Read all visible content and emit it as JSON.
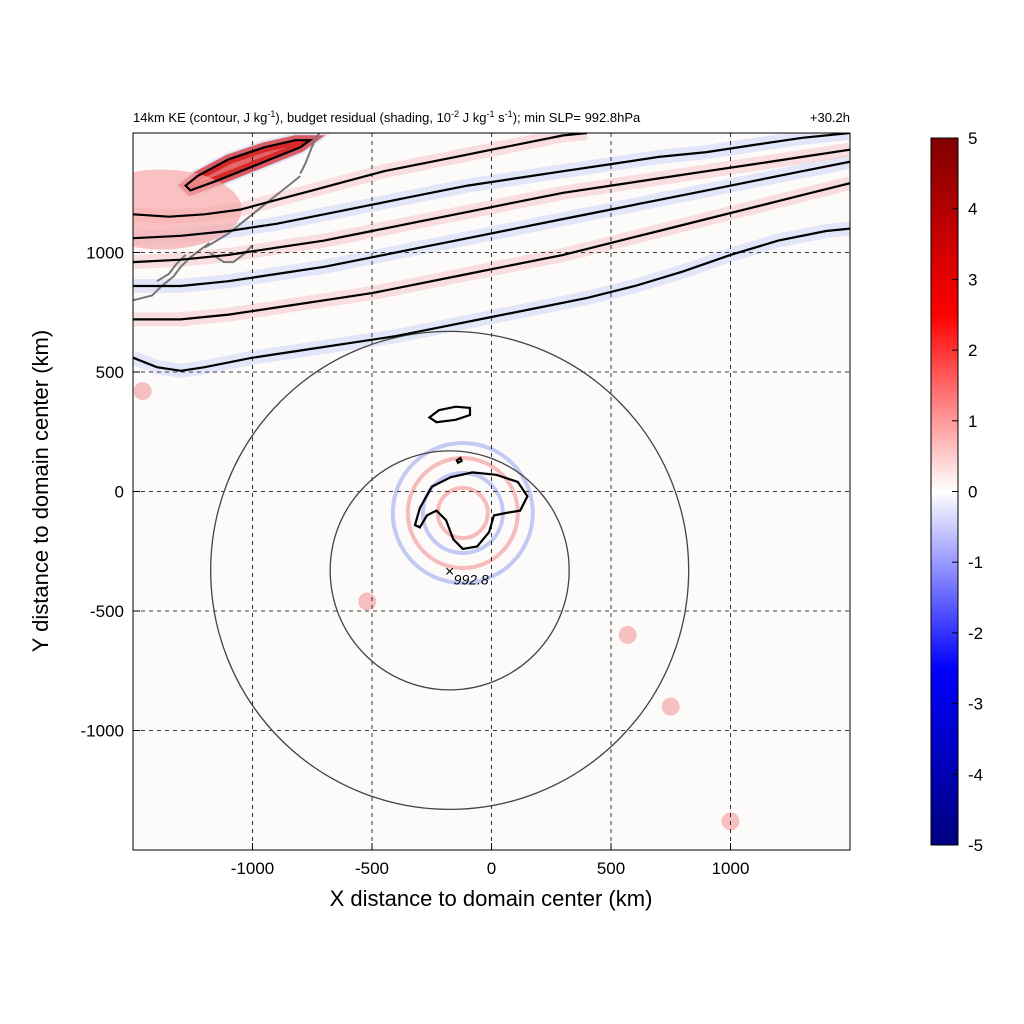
{
  "chart_data": {
    "type": "heatmap",
    "title_parts": {
      "a": "14km KE (contour, J kg",
      "a_sup": "-1",
      "b": "), budget residual (shading, 10",
      "b_sup": "-2",
      "c": " J kg",
      "c_sup": "-1",
      "d": " s",
      "d_sup": "-1",
      "e": "); min SLP= 992.8hPa"
    },
    "time_label": "+30.2h",
    "xlabel": "X distance to domain center (km)",
    "ylabel": "Y distance to domain center (km)",
    "xlim": [
      -1500,
      1500
    ],
    "ylim": [
      -1500,
      1500
    ],
    "xticks": [
      -1000,
      -500,
      0,
      500,
      1000
    ],
    "yticks": [
      1000,
      500,
      0,
      -500,
      -1000
    ],
    "grid": true,
    "colorbar": {
      "range": [
        -5,
        5
      ],
      "ticks": [
        5,
        4,
        3,
        2,
        1,
        0,
        -1,
        -2,
        -3,
        -4,
        -5
      ],
      "colors": [
        "#00007f",
        "#0000ff",
        "#ffffff",
        "#ff0000",
        "#7f0000"
      ]
    },
    "storm_center": {
      "x": -175,
      "y": -330,
      "label": "992.8",
      "marker": "×"
    },
    "range_circles_km": [
      500,
      1000
    ],
    "ke_contours": [
      {
        "name": "jet-1",
        "points": [
          [
            -1500,
            560
          ],
          [
            -1400,
            520
          ],
          [
            -1300,
            505
          ],
          [
            -1200,
            520
          ],
          [
            -1000,
            560
          ],
          [
            -800,
            590
          ],
          [
            -600,
            620
          ],
          [
            -400,
            650
          ],
          [
            -200,
            690
          ],
          [
            0,
            730
          ],
          [
            200,
            770
          ],
          [
            400,
            810
          ],
          [
            600,
            860
          ],
          [
            800,
            920
          ],
          [
            1000,
            990
          ],
          [
            1200,
            1050
          ],
          [
            1400,
            1090
          ],
          [
            1500,
            1100
          ]
        ]
      },
      {
        "name": "jet-2",
        "points": [
          [
            -1500,
            720
          ],
          [
            -1300,
            720
          ],
          [
            -1100,
            740
          ],
          [
            -900,
            770
          ],
          [
            -700,
            800
          ],
          [
            -500,
            830
          ],
          [
            -300,
            870
          ],
          [
            -100,
            910
          ],
          [
            100,
            950
          ],
          [
            300,
            990
          ],
          [
            500,
            1040
          ],
          [
            700,
            1090
          ],
          [
            900,
            1140
          ],
          [
            1100,
            1190
          ],
          [
            1300,
            1240
          ],
          [
            1500,
            1290
          ]
        ]
      },
      {
        "name": "jet-3",
        "points": [
          [
            -1500,
            860
          ],
          [
            -1300,
            860
          ],
          [
            -1100,
            880
          ],
          [
            -900,
            910
          ],
          [
            -700,
            940
          ],
          [
            -500,
            980
          ],
          [
            -300,
            1020
          ],
          [
            -100,
            1060
          ],
          [
            100,
            1100
          ],
          [
            300,
            1140
          ],
          [
            500,
            1180
          ],
          [
            700,
            1220
          ],
          [
            900,
            1260
          ],
          [
            1100,
            1300
          ],
          [
            1300,
            1340
          ],
          [
            1500,
            1380
          ]
        ]
      },
      {
        "name": "jet-4",
        "points": [
          [
            -1500,
            960
          ],
          [
            -1300,
            970
          ],
          [
            -1100,
            990
          ],
          [
            -900,
            1020
          ],
          [
            -700,
            1050
          ],
          [
            -500,
            1090
          ],
          [
            -300,
            1130
          ],
          [
            -100,
            1170
          ],
          [
            100,
            1210
          ],
          [
            300,
            1250
          ],
          [
            500,
            1280
          ],
          [
            700,
            1310
          ],
          [
            900,
            1340
          ],
          [
            1100,
            1370
          ],
          [
            1300,
            1400
          ],
          [
            1500,
            1430
          ]
        ]
      },
      {
        "name": "jet-5",
        "points": [
          [
            -1500,
            1060
          ],
          [
            -1300,
            1070
          ],
          [
            -1100,
            1090
          ],
          [
            -900,
            1120
          ],
          [
            -700,
            1160
          ],
          [
            -500,
            1200
          ],
          [
            -300,
            1240
          ],
          [
            -100,
            1280
          ],
          [
            100,
            1310
          ],
          [
            300,
            1340
          ],
          [
            500,
            1370
          ],
          [
            700,
            1400
          ],
          [
            900,
            1420
          ],
          [
            1100,
            1450
          ],
          [
            1300,
            1480
          ],
          [
            1500,
            1500
          ]
        ]
      },
      {
        "name": "jet-6",
        "points": [
          [
            -1500,
            1160
          ],
          [
            -1350,
            1150
          ],
          [
            -1200,
            1160
          ],
          [
            -1050,
            1180
          ],
          [
            -900,
            1220
          ],
          [
            -750,
            1260
          ],
          [
            -600,
            1300
          ],
          [
            -450,
            1340
          ],
          [
            -300,
            1370
          ],
          [
            -150,
            1400
          ],
          [
            0,
            1430
          ],
          [
            150,
            1460
          ],
          [
            300,
            1490
          ],
          [
            400,
            1500
          ]
        ]
      },
      {
        "name": "jet-core",
        "points": [
          [
            -1260,
            1260
          ],
          [
            -1150,
            1300
          ],
          [
            -1000,
            1360
          ],
          [
            -900,
            1400
          ],
          [
            -800,
            1440
          ],
          [
            -760,
            1470
          ],
          [
            -820,
            1470
          ],
          [
            -950,
            1440
          ],
          [
            -1100,
            1390
          ],
          [
            -1230,
            1320
          ],
          [
            -1280,
            1280
          ],
          [
            -1260,
            1260
          ]
        ]
      },
      {
        "name": "north-islet",
        "points": [
          [
            -260,
            310
          ],
          [
            -220,
            340
          ],
          [
            -150,
            355
          ],
          [
            -90,
            350
          ],
          [
            -90,
            320
          ],
          [
            -150,
            300
          ],
          [
            -230,
            290
          ],
          [
            -260,
            310
          ]
        ]
      },
      {
        "name": "core-small",
        "points": [
          [
            -145,
            130
          ],
          [
            -130,
            140
          ],
          [
            -125,
            128
          ],
          [
            -140,
            120
          ],
          [
            -145,
            130
          ]
        ]
      },
      {
        "name": "core",
        "points": [
          [
            -320,
            -140
          ],
          [
            -300,
            -70
          ],
          [
            -250,
            20
          ],
          [
            -170,
            60
          ],
          [
            -80,
            80
          ],
          [
            20,
            70
          ],
          [
            110,
            40
          ],
          [
            150,
            -20
          ],
          [
            120,
            -80
          ],
          [
            60,
            -90
          ],
          [
            10,
            -100
          ],
          [
            -10,
            -170
          ],
          [
            -60,
            -230
          ],
          [
            -120,
            -240
          ],
          [
            -160,
            -200
          ],
          [
            -190,
            -120
          ],
          [
            -230,
            -80
          ],
          [
            -270,
            -100
          ],
          [
            -300,
            -150
          ],
          [
            -320,
            -140
          ]
        ]
      }
    ],
    "coast_segments": [
      [
        [
          -1500,
          800
        ],
        [
          -1420,
          820
        ],
        [
          -1380,
          860
        ],
        [
          -1330,
          900
        ],
        [
          -1300,
          940
        ],
        [
          -1260,
          980
        ],
        [
          -1220,
          1010
        ],
        [
          -1180,
          1040
        ]
      ],
      [
        [
          -1200,
          1020
        ],
        [
          -1150,
          1050
        ],
        [
          -1100,
          1080
        ],
        [
          -1050,
          1120
        ],
        [
          -1000,
          1160
        ],
        [
          -950,
          1200
        ],
        [
          -900,
          1240
        ],
        [
          -850,
          1280
        ],
        [
          -800,
          1320
        ]
      ],
      [
        [
          -1180,
          1000
        ],
        [
          -1120,
          960
        ],
        [
          -1080,
          960
        ],
        [
          -1040,
          990
        ],
        [
          -1000,
          1030
        ]
      ],
      [
        [
          -1400,
          880
        ],
        [
          -1350,
          910
        ],
        [
          -1320,
          950
        ],
        [
          -1280,
          990
        ]
      ],
      [
        [
          -800,
          1330
        ],
        [
          -780,
          1370
        ],
        [
          -760,
          1420
        ],
        [
          -740,
          1470
        ],
        [
          -720,
          1500
        ]
      ]
    ]
  }
}
